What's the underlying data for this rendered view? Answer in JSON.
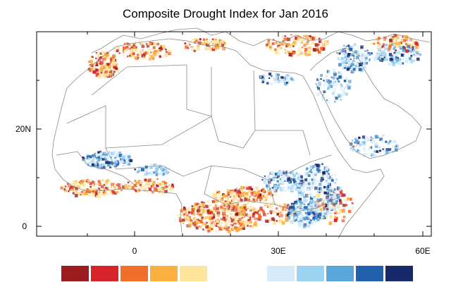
{
  "title": "Composite Drought Index for Jan 2016",
  "axes": {
    "x_ticks": [
      "0",
      "30E",
      "60E"
    ],
    "y_ticks": [
      "20N",
      "0"
    ]
  },
  "colorbar": {
    "dry_colors": [
      "#9b1b1f",
      "#d6232a",
      "#f26c2a",
      "#fbb040",
      "#fde59b"
    ],
    "neutral_color": "#ffffff",
    "wet_colors": [
      "#d6ebfa",
      "#9dd3f2",
      "#58a6db",
      "#2060ad",
      "#18296a"
    ]
  },
  "map": {
    "projection": "cylindrical",
    "lon_range": [
      -18,
      62
    ],
    "lat_range": [
      -2,
      38
    ],
    "background": "#ffffff",
    "borders_color": "#8a8a8a"
  }
}
